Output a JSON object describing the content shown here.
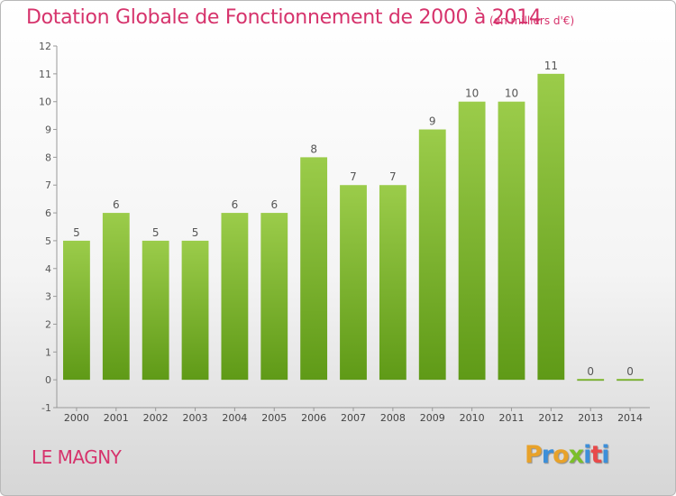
{
  "header": {
    "title": "Dotation Globale de Fonctionnement de 2000 à 2014",
    "subtitle": "(en milliers d'€)"
  },
  "footer": {
    "commune": "LE MAGNY",
    "logo_text": "Proxiti"
  },
  "colors": {
    "bar_top": "#9bcc4a",
    "bar_bottom": "#5f9a17",
    "title": "#d6336c",
    "logo": [
      "#e8a22a",
      "#3d8fd9",
      "#e8a22a",
      "#7bbf2a",
      "#3d8fd9",
      "#e84a4a",
      "#3d8fd9"
    ]
  },
  "chart_data": {
    "type": "bar",
    "categories": [
      "2000",
      "2001",
      "2002",
      "2003",
      "2004",
      "2005",
      "2006",
      "2007",
      "2008",
      "2009",
      "2010",
      "2011",
      "2012",
      "2013",
      "2014"
    ],
    "values": [
      5,
      6,
      5,
      5,
      6,
      6,
      8,
      7,
      7,
      9,
      10,
      10,
      11,
      0,
      0
    ],
    "ylim": [
      -1,
      12
    ],
    "yticks": [
      -1,
      0,
      1,
      2,
      3,
      4,
      5,
      6,
      7,
      8,
      9,
      10,
      11,
      12
    ],
    "grid": false,
    "legend": "none"
  }
}
